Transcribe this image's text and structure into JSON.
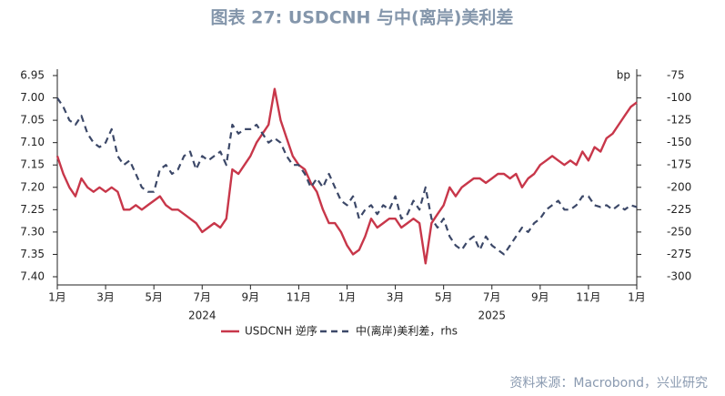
{
  "chart_data": {
    "type": "line",
    "title": "图表 27: USDCNH 与中(离岸)美利差",
    "source": "资料来源：Macrobond，兴业研究",
    "y2_unit": "bp",
    "x": [
      0,
      0.25,
      0.5,
      0.75,
      1,
      1.25,
      1.5,
      1.75,
      2,
      2.25,
      2.5,
      2.75,
      3,
      3.25,
      3.5,
      3.75,
      4,
      4.25,
      4.5,
      4.75,
      5,
      5.25,
      5.5,
      5.75,
      6,
      6.25,
      6.5,
      6.75,
      7,
      7.25,
      7.5,
      7.75,
      8,
      8.25,
      8.5,
      8.75,
      9,
      9.25,
      9.5,
      9.75,
      10,
      10.25,
      10.5,
      10.75,
      11,
      11.25,
      11.5,
      11.75,
      12,
      12.25,
      12.5,
      12.75,
      13,
      13.25,
      13.5,
      13.75,
      14,
      14.25,
      14.5,
      14.75,
      15,
      15.25,
      15.5,
      15.75,
      16,
      16.25,
      16.5,
      16.75,
      17,
      17.25,
      17.5,
      17.75,
      18,
      18.25,
      18.5,
      18.75,
      19,
      19.25,
      19.5,
      19.75,
      20,
      20.25,
      20.5,
      20.75,
      21,
      21.25,
      21.5,
      21.75,
      22,
      22.25,
      22.5,
      22.75,
      23,
      23.25,
      23.5,
      23.75,
      24
    ],
    "xlim": [
      0,
      24
    ],
    "xticks": [
      {
        "value": 0,
        "label": "1月"
      },
      {
        "value": 2,
        "label": "3月"
      },
      {
        "value": 4,
        "label": "5月"
      },
      {
        "value": 6,
        "label": "7月"
      },
      {
        "value": 8,
        "label": "9月"
      },
      {
        "value": 10,
        "label": "11月"
      },
      {
        "value": 12,
        "label": "1月"
      },
      {
        "value": 14,
        "label": "3月"
      },
      {
        "value": 16,
        "label": "5月"
      },
      {
        "value": 18,
        "label": "7月"
      },
      {
        "value": 20,
        "label": "9月"
      },
      {
        "value": 22,
        "label": "11月"
      },
      {
        "value": 24,
        "label": "1月"
      }
    ],
    "x_groups": [
      {
        "label": "2024",
        "range": [
          0,
          12
        ]
      },
      {
        "label": "2025",
        "range": [
          12,
          24
        ]
      }
    ],
    "ylim": [
      7.4,
      6.95
    ],
    "yticks": [
      6.95,
      {
        "value": 7,
        "label": "7.00"
      },
      7.05,
      {
        "value": 7.1,
        "label": "7.10"
      },
      7.15,
      {
        "value": 7.2,
        "label": "7.20"
      },
      7.25,
      {
        "value": 7.3,
        "label": "7.30"
      },
      7.35,
      {
        "value": 7.4,
        "label": "7.40"
      }
    ],
    "y2lim": [
      -300,
      -75
    ],
    "y2ticks": [
      -75,
      -100,
      -125,
      -150,
      -175,
      -200,
      -225,
      -250,
      -275,
      -300
    ],
    "series": [
      {
        "name": "USDCNH 逆序",
        "color": "#c8374a",
        "dash": false,
        "values": [
          7.13,
          7.17,
          7.2,
          7.22,
          7.18,
          7.2,
          7.21,
          7.2,
          7.21,
          7.2,
          7.21,
          7.25,
          7.25,
          7.24,
          7.25,
          7.24,
          7.23,
          7.22,
          7.24,
          7.25,
          7.25,
          7.26,
          7.27,
          7.28,
          7.3,
          7.29,
          7.28,
          7.29,
          7.27,
          7.16,
          7.17,
          7.15,
          7.13,
          7.1,
          7.08,
          7.06,
          6.98,
          7.05,
          7.09,
          7.13,
          7.15,
          7.16,
          7.19,
          7.21,
          7.25,
          7.28,
          7.28,
          7.3,
          7.33,
          7.35,
          7.34,
          7.31,
          7.27,
          7.29,
          7.28,
          7.27,
          7.27,
          7.29,
          7.28,
          7.27,
          7.28,
          7.37,
          7.28,
          7.26,
          7.24,
          7.2,
          7.22,
          7.2,
          7.19,
          7.18,
          7.18,
          7.19,
          7.18,
          7.17,
          7.17,
          7.18,
          7.17,
          7.2,
          7.18,
          7.17,
          7.15,
          7.14,
          7.13,
          7.14,
          7.15,
          7.14,
          7.15,
          7.12,
          7.14,
          7.11,
          7.12,
          7.09,
          7.08,
          7.06,
          7.04,
          7.02,
          7.01
        ]
      },
      {
        "name": "中(离岸)美利差，rhs",
        "color": "#3c4868",
        "dash": true,
        "axis": "y2",
        "values": [
          -100,
          -110,
          -125,
          -130,
          -120,
          -140,
          -150,
          -155,
          -150,
          -135,
          -165,
          -175,
          -170,
          -185,
          -200,
          -205,
          -205,
          -180,
          -175,
          -185,
          -180,
          -165,
          -160,
          -180,
          -165,
          -170,
          -165,
          -160,
          -175,
          -130,
          -140,
          -135,
          -135,
          -130,
          -140,
          -150,
          -145,
          -150,
          -165,
          -175,
          -175,
          -185,
          -200,
          -190,
          -200,
          -185,
          -200,
          -215,
          -220,
          -210,
          -235,
          -225,
          -220,
          -230,
          -220,
          -225,
          -210,
          -235,
          -230,
          -215,
          -225,
          -200,
          -235,
          -245,
          -235,
          -255,
          -265,
          -270,
          -260,
          -255,
          -270,
          -255,
          -265,
          -270,
          -275,
          -265,
          -255,
          -245,
          -250,
          -240,
          -235,
          -225,
          -220,
          -215,
          -225,
          -225,
          -220,
          -210,
          -210,
          -220,
          -222,
          -220,
          -225,
          -220,
          -225,
          -220,
          -222
        ]
      }
    ]
  }
}
